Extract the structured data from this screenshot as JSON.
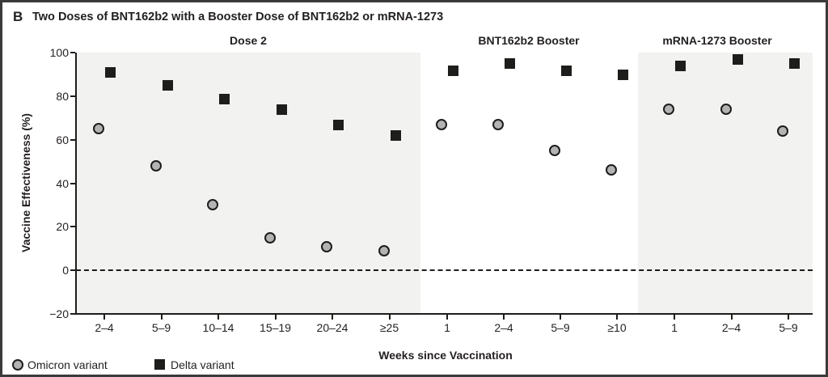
{
  "figure": {
    "panel_label": "B",
    "title": "Two Doses of BNT162b2 with a Booster Dose of BNT162b2 or mRNA-1273"
  },
  "chart_data": {
    "type": "scatter",
    "title": "Two Doses of BNT162b2 with a Booster Dose of BNT162b2 or mRNA-1273",
    "xlabel": "Weeks since Vaccination",
    "ylabel": "Vaccine Effectiveness (%)",
    "ylim": [
      -20,
      100
    ],
    "yticks": [
      {
        "v": 100,
        "label": "100"
      },
      {
        "v": 80,
        "label": "80"
      },
      {
        "v": 60,
        "label": "60"
      },
      {
        "v": 40,
        "label": "40"
      },
      {
        "v": 20,
        "label": "20"
      },
      {
        "v": 0,
        "label": "0"
      },
      {
        "v": -20,
        "label": "−20"
      }
    ],
    "zero_reference_line": true,
    "grid": false,
    "legend_position": "bottom-left",
    "panels": [
      {
        "label": "Dose 2",
        "shaded": true,
        "categories": [
          "2–4",
          "5–9",
          "10–14",
          "15–19",
          "20–24",
          "≥25"
        ],
        "series": [
          {
            "name": "Omicron variant",
            "marker": "circle",
            "values": [
              65,
              48,
              30,
              15,
              11,
              9
            ]
          },
          {
            "name": "Delta variant",
            "marker": "square",
            "values": [
              91,
              85,
              79,
              74,
              67,
              62
            ]
          }
        ]
      },
      {
        "label": "BNT162b2 Booster",
        "shaded": false,
        "categories": [
          "1",
          "2–4",
          "5–9",
          "≥10"
        ],
        "series": [
          {
            "name": "Omicron variant",
            "marker": "circle",
            "values": [
              67,
              67,
              55,
              46
            ]
          },
          {
            "name": "Delta variant",
            "marker": "square",
            "values": [
              92,
              95,
              92,
              90
            ]
          }
        ]
      },
      {
        "label": "mRNA-1273 Booster",
        "shaded": true,
        "categories": [
          "1",
          "2–4",
          "5–9"
        ],
        "series": [
          {
            "name": "Omicron variant",
            "marker": "circle",
            "values": [
              74,
              74,
              64
            ]
          },
          {
            "name": "Delta variant",
            "marker": "square",
            "values": [
              94,
              97,
              95
            ]
          }
        ]
      }
    ],
    "legend": [
      {
        "label": "Omicron variant",
        "marker": "circle"
      },
      {
        "label": "Delta variant",
        "marker": "square"
      }
    ],
    "colors": {
      "omicron_fill": "#b3b3b3",
      "delta_fill": "#1d1d1b",
      "marker_stroke": "#1d1d1b",
      "panel_shade": "#f2f2f0",
      "axis": "#1d1d1b",
      "text": "#231f20"
    }
  }
}
